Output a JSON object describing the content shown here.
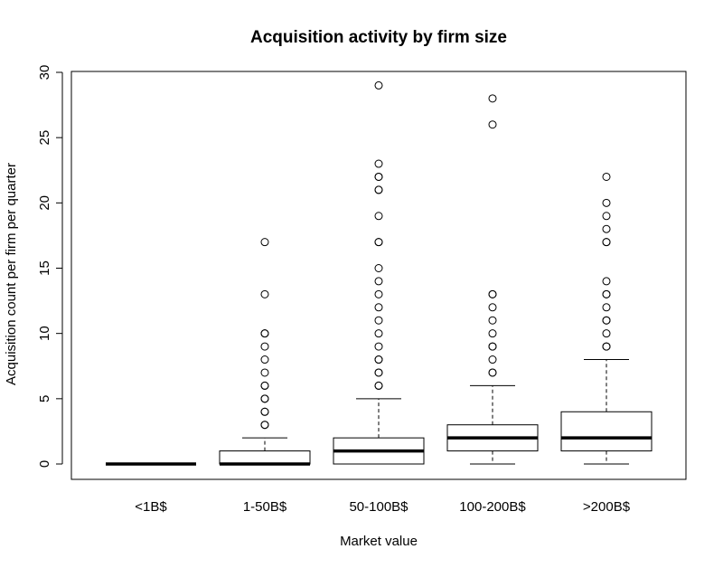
{
  "chart_data": {
    "type": "boxplot",
    "title": "Acquisition activity by firm size",
    "xlabel": "Market value",
    "ylabel": "Acquisition count per firm per quarter",
    "ylim": [
      0,
      30
    ],
    "yticks": [
      0,
      5,
      10,
      15,
      20,
      25,
      30
    ],
    "categories": [
      "<1B$",
      "1-50B$",
      "50-100B$",
      "100-200B$",
      ">200B$"
    ],
    "boxes": [
      {
        "category": "<1B$",
        "min": 0,
        "q1": 0,
        "median": 0,
        "q3": 0,
        "max": 0,
        "outliers": []
      },
      {
        "category": "1-50B$",
        "min": 0,
        "q1": 0,
        "median": 0,
        "q3": 1,
        "max": 2,
        "outliers": [
          3,
          3,
          4,
          4,
          5,
          5,
          6,
          6,
          7,
          8,
          9,
          10,
          10,
          13,
          17
        ]
      },
      {
        "category": "50-100B$",
        "min": 0,
        "q1": 0,
        "median": 1,
        "q3": 2,
        "max": 5,
        "outliers": [
          6,
          6,
          7,
          7,
          8,
          8,
          9,
          10,
          11,
          12,
          13,
          14,
          15,
          17,
          17,
          19,
          21,
          21,
          22,
          22,
          23,
          29
        ]
      },
      {
        "category": "100-200B$",
        "min": 0,
        "q1": 1,
        "median": 2,
        "q3": 3,
        "max": 6,
        "outliers": [
          7,
          7,
          8,
          9,
          9,
          10,
          11,
          12,
          13,
          13,
          26,
          28
        ]
      },
      {
        "category": ">200B$",
        "min": 0,
        "q1": 1,
        "median": 2,
        "q3": 4,
        "max": 8,
        "outliers": [
          9,
          9,
          10,
          11,
          11,
          12,
          13,
          13,
          14,
          17,
          17,
          18,
          19,
          20,
          22
        ]
      }
    ]
  }
}
